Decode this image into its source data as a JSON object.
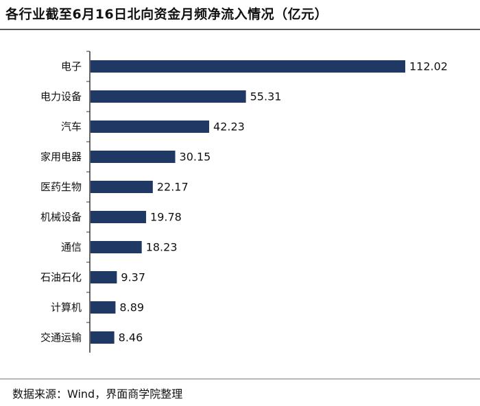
{
  "header": {
    "title": "各行业截至6月16日北向资金月频净流入情况（亿元）"
  },
  "footer": {
    "source": "数据来源：Wind，界面商学院整理"
  },
  "colors": {
    "bar": "#1f3864",
    "axis": "#333333",
    "rule": "#555555"
  },
  "chart_data": {
    "type": "bar",
    "orientation": "horizontal",
    "title": "各行业截至6月16日北向资金月频净流入情况（亿元）",
    "xlabel": "",
    "ylabel": "",
    "grid": false,
    "legend": "none",
    "xlim": [
      0,
      112.02
    ],
    "categories": [
      "电子",
      "电力设备",
      "汽车",
      "家用电器",
      "医药生物",
      "机械设备",
      "通信",
      "石油石化",
      "计算机",
      "交通运输"
    ],
    "values": [
      112.02,
      55.31,
      42.23,
      30.15,
      22.17,
      19.78,
      18.23,
      9.37,
      8.89,
      8.46
    ],
    "value_labels": [
      "112.02",
      "55.31",
      "42.23",
      "30.15",
      "22.17",
      "19.78",
      "18.23",
      "9.37",
      "8.89",
      "8.46"
    ]
  }
}
